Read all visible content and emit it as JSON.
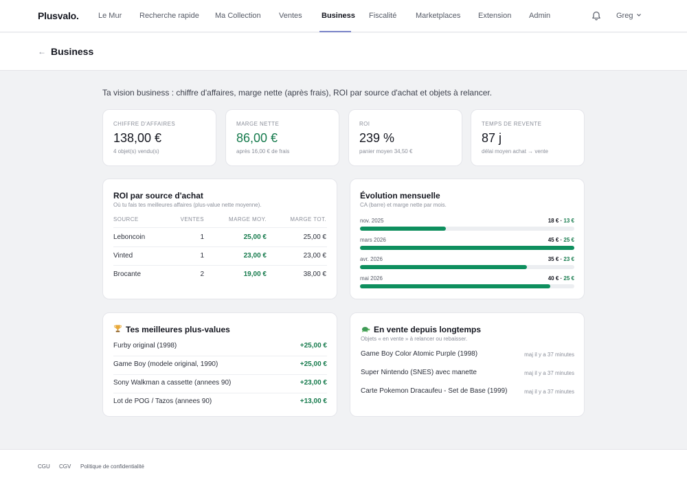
{
  "app": {
    "logo": "Plusvalo."
  },
  "nav": {
    "items": [
      "Le Mur",
      "Recherche rapide",
      "Ma Collection",
      "Ventes",
      "Business",
      "Fiscalité",
      "Marketplaces",
      "Extension",
      "Admin"
    ],
    "active": "Business",
    "user": "Greg"
  },
  "page": {
    "back": "←",
    "title": "Business"
  },
  "intro": "Ta vision business : chiffre d'affaires, marge nette (après frais), ROI par source d'achat et objets à relancer.",
  "kpis": [
    {
      "label": "Chiffre d'affaires",
      "value": "138,00 €",
      "sub": "4 objet(s) vendu(s)"
    },
    {
      "label": "Marge nette",
      "value": "86,00 €",
      "sub": "après 16,00 € de frais"
    },
    {
      "label": "ROI",
      "value": "239 %",
      "sub": "panier moyen 34,50 €"
    },
    {
      "label": "Temps de revente",
      "value": "87 j",
      "sub": "délai moyen achat → vente"
    }
  ],
  "roi": {
    "title": "ROI par source d'achat",
    "subtitle": "Où tu fais tes meilleures affaires (plus-value nette moyenne).",
    "headers": [
      "SOURCE",
      "VENTES",
      "MARGE MOY.",
      "MARGE TOT."
    ],
    "rows": [
      {
        "source": "Leboncoin",
        "ventes": "1",
        "moy": "25,00 €",
        "tot": "25,00 €"
      },
      {
        "source": "Vinted",
        "ventes": "1",
        "moy": "23,00 €",
        "tot": "23,00 €"
      },
      {
        "source": "Brocante",
        "ventes": "2",
        "moy": "19,00 €",
        "tot": "38,00 €"
      }
    ]
  },
  "evolution": {
    "title": "Évolution mensuelle",
    "subtitle": "CA (barre) et marge nette par mois.",
    "rows": [
      {
        "month": "nov. 2025",
        "ca": "18 €",
        "sep": " · ",
        "marge": "13 €",
        "ca_value": 18
      },
      {
        "month": "mars 2026",
        "ca": "45 €",
        "sep": " · ",
        "marge": "25 €",
        "ca_value": 45
      },
      {
        "month": "avr. 2026",
        "ca": "35 €",
        "sep": " · ",
        "marge": "23 €",
        "ca_value": 35
      },
      {
        "month": "mai 2026",
        "ca": "40 €",
        "sep": " · ",
        "marge": "25 €",
        "ca_value": 40
      }
    ],
    "max_value": 45
  },
  "best": {
    "title": "Tes meilleures plus-values",
    "icon": "trophy-icon",
    "items": [
      {
        "name": "Furby original (1998)",
        "gain": "+25,00 €"
      },
      {
        "name": "Game Boy (modele original, 1990)",
        "gain": "+25,00 €"
      },
      {
        "name": "Sony Walkman a cassette (annees 90)",
        "gain": "+23,00 €"
      },
      {
        "name": "Lot de POG / Tazos (annees 90)",
        "gain": "+13,00 €"
      }
    ]
  },
  "stale": {
    "title": "En vente depuis longtemps",
    "icon": "turtle-icon",
    "subtitle": "Objets « en vente » à relancer ou rebaisser.",
    "items": [
      {
        "name": "Game Boy Color Atomic Purple (1998)",
        "time": "maj il y a 37 minutes"
      },
      {
        "name": "Super Nintendo (SNES) avec manette",
        "time": "maj il y a 37 minutes"
      },
      {
        "name": "Carte Pokemon Dracaufeu - Set de Base (1999)",
        "time": "maj il y a 37 minutes"
      }
    ]
  },
  "footer": {
    "links": [
      "CGU",
      "CGV",
      "Politique de confidentialité"
    ]
  },
  "colors": {
    "accent": "#0e8f5e",
    "nav_underline": "#7c85c9"
  }
}
